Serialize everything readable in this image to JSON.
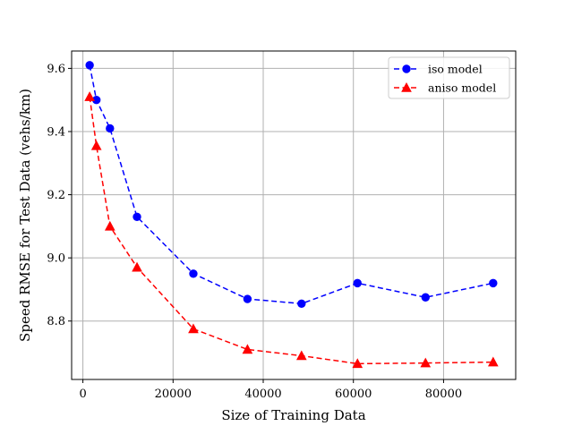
{
  "chart_data": {
    "type": "line",
    "xlabel": "Size of Training Data",
    "ylabel": "Speed RMSE for Test Data (vehs/km)",
    "xlim": [
      -2500,
      96000
    ],
    "ylim": [
      8.615,
      9.655
    ],
    "xticks": [
      0,
      20000,
      40000,
      60000,
      80000
    ],
    "yticks": [
      8.8,
      9.0,
      9.2,
      9.4,
      9.6
    ],
    "xtick_labels": [
      "0",
      "20000",
      "40000",
      "60000",
      "80000"
    ],
    "ytick_labels": [
      "8.8",
      "9.0",
      "9.2",
      "9.4",
      "9.6"
    ],
    "grid": true,
    "legend_position": "top-right",
    "series": [
      {
        "name": "iso model",
        "color": "#0000ff",
        "marker": "circle",
        "linestyle": "dashed",
        "x": [
          1500,
          3000,
          6000,
          12000,
          24500,
          36500,
          48500,
          60900,
          76000,
          91000
        ],
        "y": [
          9.61,
          9.5,
          9.41,
          9.13,
          8.95,
          8.87,
          8.855,
          8.92,
          8.875,
          8.92
        ]
      },
      {
        "name": "aniso model",
        "color": "#ff0000",
        "marker": "triangle",
        "linestyle": "dashed",
        "x": [
          1500,
          3000,
          6000,
          12000,
          24500,
          36500,
          48500,
          60900,
          76000,
          91000
        ],
        "y": [
          9.51,
          9.355,
          9.1,
          8.97,
          8.775,
          8.71,
          8.69,
          8.665,
          8.667,
          8.67
        ]
      }
    ]
  }
}
